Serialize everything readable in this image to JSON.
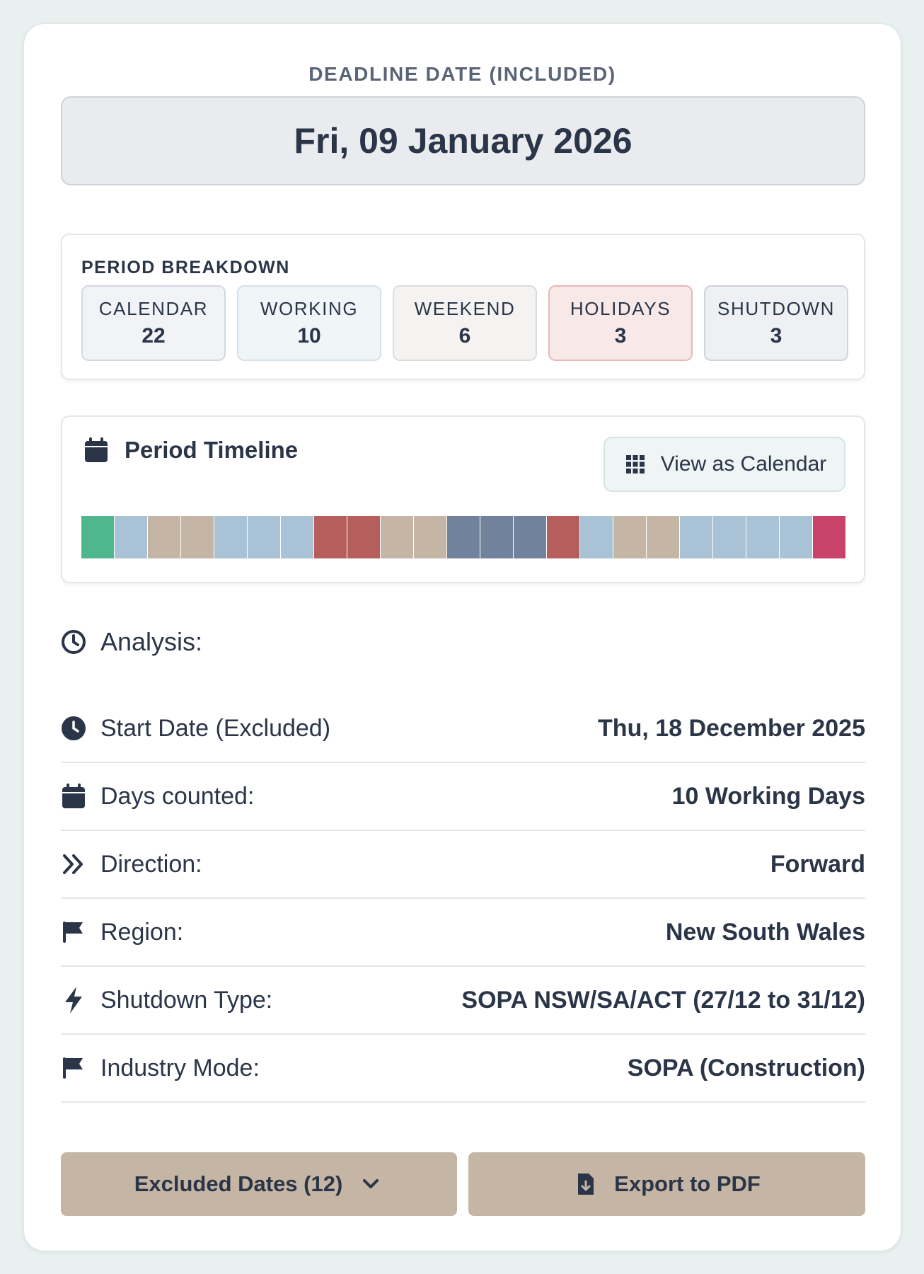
{
  "deadline": {
    "label": "DEADLINE DATE (INCLUDED)",
    "date": "Fri, 09 January 2026"
  },
  "breakdown": {
    "title": "PERIOD BREAKDOWN",
    "stats": [
      {
        "label": "CALENDAR",
        "value": "22"
      },
      {
        "label": "WORKING",
        "value": "10"
      },
      {
        "label": "WEEKEND",
        "value": "6"
      },
      {
        "label": "HOLIDAYS",
        "value": "3"
      },
      {
        "label": "SHUTDOWN",
        "value": "3"
      }
    ]
  },
  "timeline": {
    "title": "Period Timeline",
    "view_button": "View as Calendar",
    "segments": [
      "start",
      "working",
      "weekend",
      "weekend",
      "working",
      "working",
      "working",
      "holiday",
      "holiday",
      "weekend",
      "weekend",
      "shutdown",
      "shutdown",
      "shutdown",
      "holiday",
      "working",
      "weekend",
      "weekend",
      "working",
      "working",
      "working",
      "working",
      "deadline"
    ],
    "colors": {
      "start": "#4fb68d",
      "working": "#a9c2d6",
      "weekend": "#c5b5a4",
      "holiday": "#b55e5c",
      "shutdown": "#71829d",
      "deadline": "#c9426a"
    }
  },
  "analysis": {
    "title": "Analysis:",
    "rows": [
      {
        "icon": "clock-icon",
        "label": "Start Date (Excluded)",
        "value": "Thu, 18 December 2025"
      },
      {
        "icon": "calendar-icon",
        "label": "Days counted:",
        "value": "10 Working Days"
      },
      {
        "icon": "double-chevron-right-icon",
        "label": "Direction:",
        "value": "Forward"
      },
      {
        "icon": "flag-icon",
        "label": "Region:",
        "value": "New South Wales"
      },
      {
        "icon": "lightning-icon",
        "label": "Shutdown Type:",
        "value": "SOPA NSW/SA/ACT (27/12 to 31/12)"
      },
      {
        "icon": "flag-icon",
        "label": "Industry Mode:",
        "value": "SOPA (Construction)"
      }
    ]
  },
  "actions": {
    "excluded_label": "Excluded Dates (12)",
    "export_label": "Export to PDF"
  }
}
